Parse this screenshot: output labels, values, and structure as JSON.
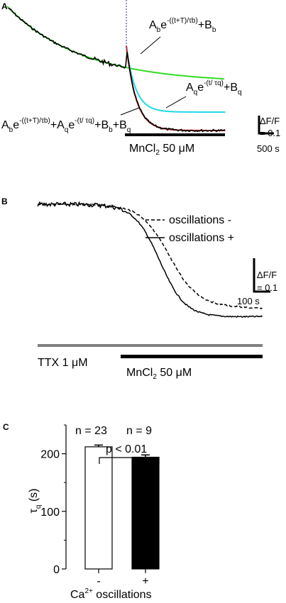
{
  "colors": {
    "trace": "#000000",
    "fit_baseline": "#33dd22",
    "fit_quench": "#22d8e8",
    "fit_combined": "#cc2222",
    "fit_combined_overlay": "#7777bb",
    "ttx_bar": "#808080",
    "bar_plus": "#000000",
    "bar_minus": "#ffffff"
  },
  "panel_a": {
    "letter": "A",
    "eq_baseline": {
      "main": "A",
      "sub_b": "b",
      "e": "e",
      "exp": "-((t+T)/τb)",
      "tail": "+B",
      "tail_sub": "b"
    },
    "eq_quench": {
      "main": "A",
      "sub_q": "q",
      "e": "e",
      "exp": "-(t/ τq)",
      "tail": "+B",
      "tail_sub": "q"
    },
    "eq_combined": {
      "p1": "A",
      "p1s": "b",
      "e1": "e",
      "x1": "-((t+T)/τb)",
      "p2": "+A",
      "p2s": "q",
      "e2": "e",
      "x2": "-(t/ τq)",
      "p3": "+B",
      "p3s": "b",
      "p4": "+B",
      "p4s": "q"
    },
    "treatment_label": "MnCl",
    "treatment_sub": "2",
    "treatment_conc": " 50 μM",
    "scale_y_label_1": "ΔF/F",
    "scale_y_label_2": "= 0.1",
    "scale_x_label": "500 s"
  },
  "panel_b": {
    "letter": "B",
    "legend_minus": "oscillations -",
    "legend_plus": "oscillations +",
    "scale_y_label_1": "ΔF/F",
    "scale_y_label_2": "= 0.1",
    "scale_x_label": "100 s",
    "ttx_label": "TTX 1 μM",
    "mn_label": "MnCl",
    "mn_sub": "2",
    "mn_conc": " 50 μM"
  },
  "chart_data": {
    "letter": "C",
    "type": "bar",
    "categories": [
      "-",
      "+"
    ],
    "values": [
      212,
      194
    ],
    "errors": [
      3,
      4
    ],
    "ylim": [
      0,
      250
    ],
    "yticks": [
      "0",
      "100",
      "200"
    ],
    "ylabel_main": "τ",
    "ylabel_sub": "q",
    "ylabel_unit": " (s)",
    "xlabel_pre": "Ca",
    "xlabel_sup": "2+",
    "xlabel_post": " oscillations",
    "n_labels": [
      "n = 23",
      "n = 9"
    ],
    "significance": "p < 0.01"
  }
}
